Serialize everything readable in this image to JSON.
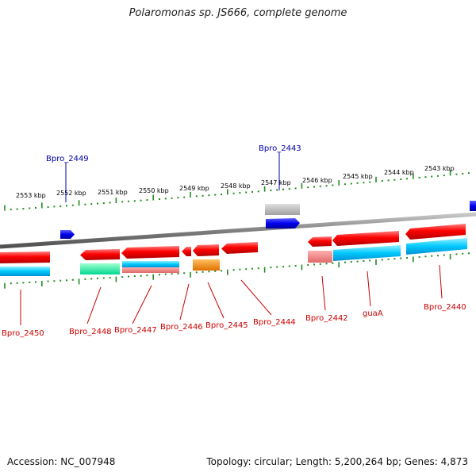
{
  "title": "Polaromonas sp. JS666, complete genome",
  "footer": {
    "accession": "Accession: NC_007948",
    "summary": "Topology: circular; Length: 5,200,264 bp; Genes: 4,873"
  },
  "scale_labels": [
    "2553 kbp",
    "2552 kbp",
    "2551 kbp",
    "2550 kbp",
    "2549 kbp",
    "2548 kbp",
    "2547 kbp",
    "2546 kbp",
    "2545 kbp",
    "2544 kbp",
    "2543 kbp"
  ],
  "genes_top": [
    {
      "label": "Bpro_2449",
      "color": "#0000cc"
    },
    {
      "label": "Bpro_2443",
      "color": "#0000cc"
    }
  ],
  "genes_bottom": [
    {
      "label": "Bpro_2450"
    },
    {
      "label": "Bpro_2448"
    },
    {
      "label": "Bpro_2447"
    },
    {
      "label": "Bpro_2446"
    },
    {
      "label": "Bpro_2445"
    },
    {
      "label": "Bpro_2444"
    },
    {
      "label": "Bpro_2442"
    },
    {
      "label": "guaA"
    },
    {
      "label": "Bpro_2440"
    }
  ],
  "colors": {
    "forward_gene": "#0000ee",
    "reverse_gene": "#ee0000",
    "label_forward": "#0000aa",
    "label_reverse": "#cc0000",
    "tick": "#228b22",
    "backbone": "#808080"
  }
}
